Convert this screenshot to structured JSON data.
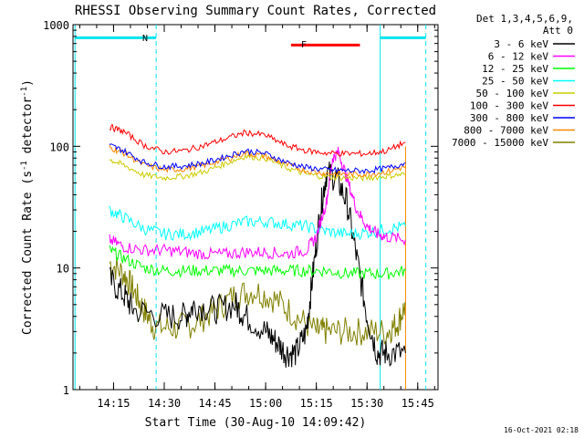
{
  "chart_data": {
    "type": "line",
    "title": "RHESSI Observing Summary Count Rates, Corrected",
    "xlabel": "Start Time (30-Aug-10 14:09:42)",
    "ylabel_main": "Corrected Count Rate (s",
    "ylabel_sup1": "-1",
    "ylabel_mid": " detector",
    "ylabel_sup2": "-1",
    "ylabel_end": ")",
    "y_scale": "log",
    "ylim": [
      1,
      1000
    ],
    "xlim_minutes": [
      14.05,
      15.85
    ],
    "x_ticks": [
      {
        "label": "14:15",
        "minute": 14.25
      },
      {
        "label": "14:30",
        "minute": 14.5
      },
      {
        "label": "14:45",
        "minute": 14.75
      },
      {
        "label": "15:00",
        "minute": 15.0
      },
      {
        "label": "15:15",
        "minute": 15.25
      },
      {
        "label": "15:30",
        "minute": 15.5
      },
      {
        "label": "15:45",
        "minute": 15.75
      }
    ],
    "y_ticks": [
      {
        "label": "1",
        "value": 1
      },
      {
        "label": "10",
        "value": 10
      },
      {
        "label": "100",
        "value": 100
      },
      {
        "label": "1000",
        "value": 1000
      }
    ],
    "legend_header": [
      "Det 1,3,4,5,6,9,",
      "Att 0"
    ],
    "legend_placement": "top-right, outside plot",
    "timestamp": "16-Oct-2021 02:18",
    "annotations": {
      "night_label": "N",
      "flare_label": "F",
      "night_segments_hours": [
        [
          14.06,
          14.46
        ],
        [
          15.565,
          15.79
        ]
      ],
      "night_dashed_hours": [
        14.46,
        15.79
      ],
      "flare_segment_hours": [
        15.125,
        15.465
      ],
      "saa_solid_line_hours": [
        14.06,
        15.565
      ],
      "marker_y_value": 780,
      "flare_marker_y_value": 680,
      "data_end_hours": 15.69
    },
    "series": [
      {
        "name": "3 - 6 keV",
        "color": "#000000",
        "points": [
          [
            14.23,
            8
          ],
          [
            14.3,
            6
          ],
          [
            14.35,
            4.5
          ],
          [
            14.5,
            4
          ],
          [
            14.6,
            4
          ],
          [
            14.65,
            5
          ],
          [
            14.75,
            4.5
          ],
          [
            14.85,
            5
          ],
          [
            14.9,
            4
          ],
          [
            15.0,
            3
          ],
          [
            15.05,
            2.5
          ],
          [
            15.1,
            2
          ],
          [
            15.15,
            2
          ],
          [
            15.2,
            3
          ],
          [
            15.23,
            8
          ],
          [
            15.27,
            30
          ],
          [
            15.3,
            60
          ],
          [
            15.35,
            55
          ],
          [
            15.4,
            35
          ],
          [
            15.45,
            12
          ],
          [
            15.5,
            4
          ],
          [
            15.55,
            2
          ],
          [
            15.6,
            2
          ],
          [
            15.69,
            2
          ]
        ]
      },
      {
        "name": "6 - 12 keV",
        "color": "#ff00ff",
        "points": [
          [
            14.23,
            17
          ],
          [
            14.3,
            15
          ],
          [
            14.4,
            14
          ],
          [
            14.5,
            14
          ],
          [
            14.6,
            13.5
          ],
          [
            14.7,
            13
          ],
          [
            14.8,
            13
          ],
          [
            14.9,
            13.5
          ],
          [
            15.0,
            13.5
          ],
          [
            15.1,
            13
          ],
          [
            15.2,
            14
          ],
          [
            15.25,
            18
          ],
          [
            15.3,
            35
          ],
          [
            15.33,
            80
          ],
          [
            15.36,
            90
          ],
          [
            15.4,
            55
          ],
          [
            15.45,
            30
          ],
          [
            15.5,
            22
          ],
          [
            15.55,
            19
          ],
          [
            15.6,
            18
          ],
          [
            15.69,
            17
          ]
        ]
      },
      {
        "name": "12 - 25 keV",
        "color": "#00ff00",
        "points": [
          [
            14.23,
            14
          ],
          [
            14.3,
            12
          ],
          [
            14.4,
            10
          ],
          [
            14.5,
            9.5
          ],
          [
            14.6,
            9.5
          ],
          [
            14.7,
            9.5
          ],
          [
            14.8,
            9.5
          ],
          [
            14.9,
            9.5
          ],
          [
            15.0,
            9.5
          ],
          [
            15.1,
            9.5
          ],
          [
            15.2,
            9.5
          ],
          [
            15.3,
            9.5
          ],
          [
            15.4,
            9
          ],
          [
            15.5,
            9
          ],
          [
            15.6,
            9
          ],
          [
            15.69,
            9.5
          ]
        ]
      },
      {
        "name": "25 - 50 keV",
        "color": "#00ffff",
        "points": [
          [
            14.23,
            30
          ],
          [
            14.3,
            26
          ],
          [
            14.4,
            21
          ],
          [
            14.5,
            19
          ],
          [
            14.6,
            19
          ],
          [
            14.7,
            20
          ],
          [
            14.8,
            22
          ],
          [
            14.9,
            24
          ],
          [
            15.0,
            24
          ],
          [
            15.1,
            23
          ],
          [
            15.2,
            22
          ],
          [
            15.3,
            20
          ],
          [
            15.4,
            19
          ],
          [
            15.5,
            19.5
          ],
          [
            15.6,
            21
          ],
          [
            15.69,
            22
          ]
        ]
      },
      {
        "name": "50 - 100 keV",
        "color": "#cccc00",
        "points": [
          [
            14.23,
            78
          ],
          [
            14.3,
            70
          ],
          [
            14.4,
            58
          ],
          [
            14.5,
            55
          ],
          [
            14.6,
            57
          ],
          [
            14.7,
            62
          ],
          [
            14.8,
            72
          ],
          [
            14.9,
            83
          ],
          [
            15.0,
            80
          ],
          [
            15.1,
            67
          ],
          [
            15.2,
            59
          ],
          [
            15.3,
            56
          ],
          [
            15.4,
            55
          ],
          [
            15.5,
            55
          ],
          [
            15.6,
            57
          ],
          [
            15.69,
            59
          ]
        ]
      },
      {
        "name": "100 - 300 keV",
        "color": "#ff0000",
        "points": [
          [
            14.23,
            145
          ],
          [
            14.3,
            132
          ],
          [
            14.4,
            102
          ],
          [
            14.5,
            90
          ],
          [
            14.6,
            92
          ],
          [
            14.7,
            102
          ],
          [
            14.8,
            115
          ],
          [
            14.9,
            130
          ],
          [
            15.0,
            123
          ],
          [
            15.1,
            102
          ],
          [
            15.2,
            92
          ],
          [
            15.3,
            88
          ],
          [
            15.4,
            87
          ],
          [
            15.5,
            87
          ],
          [
            15.6,
            92
          ],
          [
            15.69,
            108
          ]
        ]
      },
      {
        "name": "300 - 800 keV",
        "color": "#0000ff",
        "points": [
          [
            14.23,
            102
          ],
          [
            14.3,
            92
          ],
          [
            14.4,
            74
          ],
          [
            14.5,
            68
          ],
          [
            14.6,
            69
          ],
          [
            14.7,
            73
          ],
          [
            14.8,
            82
          ],
          [
            14.9,
            92
          ],
          [
            15.0,
            87
          ],
          [
            15.1,
            74
          ],
          [
            15.2,
            67
          ],
          [
            15.3,
            64
          ],
          [
            15.4,
            63
          ],
          [
            15.5,
            63
          ],
          [
            15.6,
            66
          ],
          [
            15.69,
            73
          ]
        ]
      },
      {
        "name": "800 - 7000 keV",
        "color": "#ff8800",
        "points": [
          [
            14.23,
            98
          ],
          [
            14.3,
            88
          ],
          [
            14.4,
            70
          ],
          [
            14.5,
            64
          ],
          [
            14.6,
            65
          ],
          [
            14.7,
            70
          ],
          [
            14.8,
            78
          ],
          [
            14.9,
            88
          ],
          [
            15.0,
            83
          ],
          [
            15.1,
            71
          ],
          [
            15.2,
            63
          ],
          [
            15.3,
            60
          ],
          [
            15.4,
            59
          ],
          [
            15.5,
            59
          ],
          [
            15.6,
            62
          ],
          [
            15.69,
            68
          ]
        ]
      },
      {
        "name": "7000 - 15000 keV",
        "color": "#808000",
        "points": [
          [
            14.23,
            11
          ],
          [
            14.3,
            9
          ],
          [
            14.35,
            6.5
          ],
          [
            14.4,
            4.5
          ],
          [
            14.45,
            3.3
          ],
          [
            14.55,
            3.2
          ],
          [
            14.65,
            3.5
          ],
          [
            14.75,
            4.5
          ],
          [
            14.85,
            6
          ],
          [
            14.95,
            6.5
          ],
          [
            15.05,
            5.5
          ],
          [
            15.15,
            4
          ],
          [
            15.25,
            3
          ],
          [
            15.3,
            3
          ],
          [
            15.4,
            3
          ],
          [
            15.5,
            3
          ],
          [
            15.6,
            3
          ],
          [
            15.65,
            3.5
          ],
          [
            15.69,
            5
          ]
        ]
      }
    ]
  }
}
